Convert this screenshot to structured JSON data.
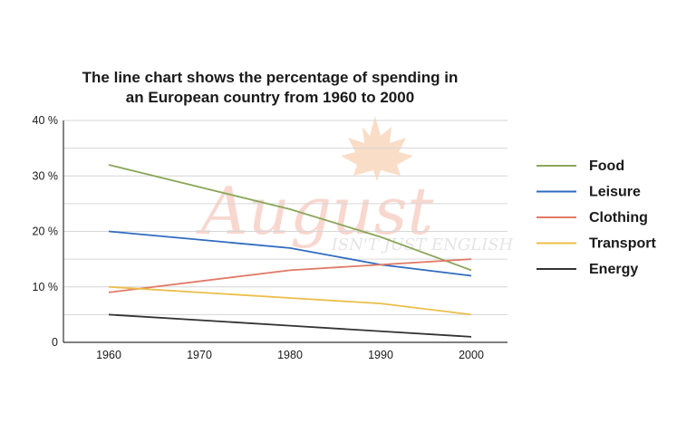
{
  "chart_data": {
    "type": "line",
    "title_lines": [
      "The line chart shows the percentage of spending in",
      "an European country from 1960 to 2000"
    ],
    "x": [
      1960,
      1980,
      1990,
      2000
    ],
    "x_ticks": [
      1960,
      1970,
      1980,
      1990,
      2000
    ],
    "y_ticks": [
      {
        "value": 0,
        "label": "0"
      },
      {
        "value": 10,
        "label": "10 %"
      },
      {
        "value": 20,
        "label": "20 %"
      },
      {
        "value": 30,
        "label": "30 %"
      },
      {
        "value": 40,
        "label": "40 %"
      }
    ],
    "xlim": [
      1955,
      2004
    ],
    "ylim": [
      0,
      40
    ],
    "grid": true,
    "legend_position": "right",
    "series": [
      {
        "name": "Food",
        "color": "#8aa65a",
        "values": [
          32,
          24,
          19,
          13
        ]
      },
      {
        "name": "Leisure",
        "color": "#2f6bbf",
        "values": [
          20,
          17,
          14,
          12
        ]
      },
      {
        "name": "Clothing",
        "color": "#e07a66",
        "values": [
          9,
          13,
          14,
          15
        ]
      },
      {
        "name": "Transport",
        "color": "#ecbe4a",
        "values": [
          10,
          8,
          7,
          5
        ]
      },
      {
        "name": "Energy",
        "color": "#333333",
        "values": [
          5,
          3,
          2,
          1
        ]
      }
    ]
  },
  "watermark": {
    "brand": "August",
    "tagline": "ISN'T JUST ENGLISH",
    "brand_color": "#f3b8a8",
    "tagline_color": "#cfcfcf",
    "leaf_color": "#f6c39a"
  }
}
